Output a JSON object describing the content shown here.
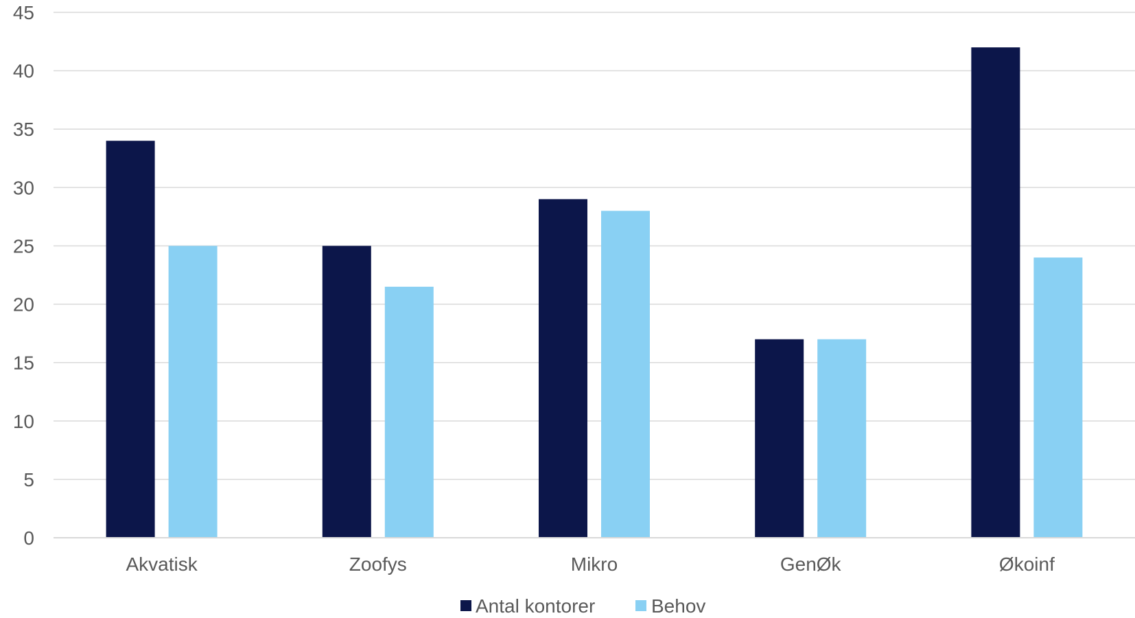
{
  "chart_data": {
    "type": "bar",
    "categories": [
      "Akvatisk",
      "Zoofys",
      "Mikro",
      "GenØk",
      "Økoinf"
    ],
    "series": [
      {
        "name": "Antal kontorer",
        "values": [
          34,
          25,
          29,
          17,
          42
        ],
        "color": "#0c164a"
      },
      {
        "name": "Behov",
        "values": [
          25,
          21.5,
          28,
          17,
          24
        ],
        "color": "#89d0f3"
      }
    ],
    "ylim": [
      0,
      45
    ],
    "yticks": [
      0,
      5,
      10,
      15,
      20,
      25,
      30,
      35,
      40,
      45
    ],
    "grid": true,
    "legend": "bottom-center",
    "title": "",
    "xlabel": "",
    "ylabel": ""
  }
}
